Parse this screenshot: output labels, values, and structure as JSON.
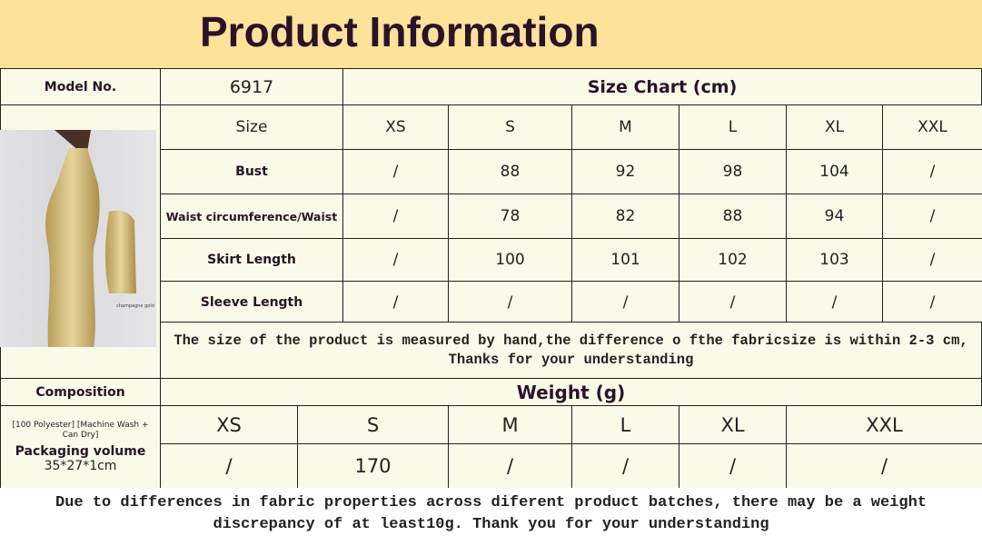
{
  "header": {
    "title": "Product Information"
  },
  "model": {
    "label": "Model No.",
    "value": "6917"
  },
  "size_chart": {
    "title": "Size Chart (cm)",
    "columns": [
      "Size",
      "XS",
      "S",
      "M",
      "L",
      "XL",
      "XXL"
    ],
    "rows": [
      [
        "Bust",
        "/",
        "88",
        "92",
        "98",
        "104",
        "/"
      ],
      [
        "Waist circumference/Waist",
        "/",
        "78",
        "82",
        "88",
        "94",
        "/"
      ],
      [
        "Skirt Length",
        "/",
        "100",
        "101",
        "102",
        "103",
        "/"
      ],
      [
        "Sleeve Length",
        "/",
        "/",
        "/",
        "/",
        "/",
        "/"
      ]
    ],
    "note": "The size of the product is measured by hand,the difference o fthe fabricsize is within 2-3 cm, Thanks for your understanding"
  },
  "product_image": {
    "caption": "champagne gold"
  },
  "composition": {
    "label": "Composition",
    "value": "[100 Polyester] [Machine Wash + Can Dry]",
    "packaging_label": "Packaging volume",
    "packaging_value": "35*27*1cm"
  },
  "weight": {
    "title": "Weight (g)",
    "sizes": [
      "XS",
      "S",
      "M",
      "L",
      "XL",
      "XXL"
    ],
    "values": [
      "/",
      "170",
      "/",
      "/",
      "/",
      "/"
    ]
  },
  "footer_note": "Due to differences in fabric properties across diferent product batches, there may be a weight discrepancy of at least10g. Thank you for your understanding"
}
